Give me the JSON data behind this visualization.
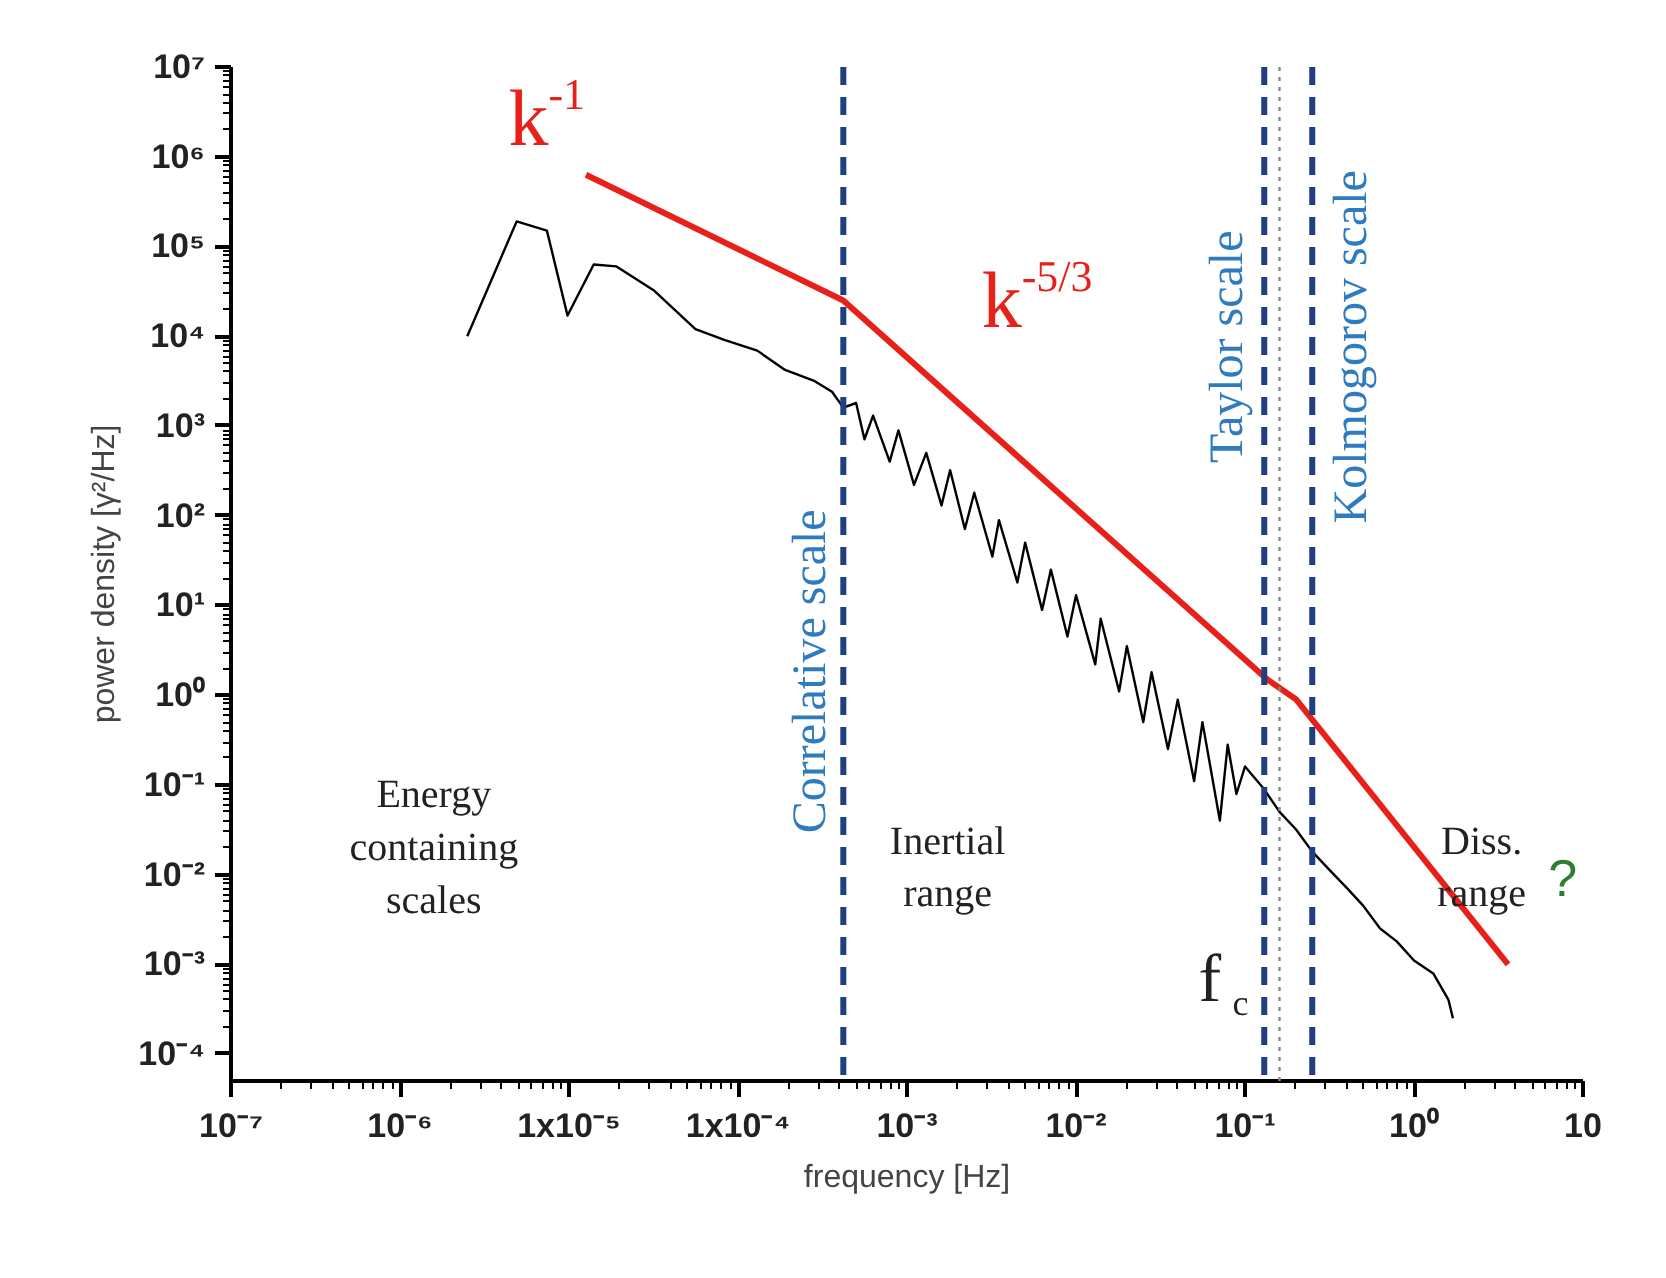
{
  "chart_data": {
    "type": "line",
    "xlabel": "frequency [Hz]",
    "ylabel": "power density [γ²/Hz]",
    "log": "xy",
    "grid": false,
    "marker": "none",
    "line_style": "solid",
    "xlim": [
      1e-07,
      10
    ],
    "ylim": [
      5e-05,
      10000000.0
    ],
    "xticks": [
      {
        "value": 1e-07,
        "label": "10⁻⁷"
      },
      {
        "value": 1e-06,
        "label": "10⁻⁶"
      },
      {
        "value": 1e-05,
        "label": "1x10⁻⁵"
      },
      {
        "value": 0.0001,
        "label": "1x10⁻⁴"
      },
      {
        "value": 0.001,
        "label": "10⁻³"
      },
      {
        "value": 0.01,
        "label": "10⁻²"
      },
      {
        "value": 0.1,
        "label": "10⁻¹"
      },
      {
        "value": 1,
        "label": "10⁰"
      },
      10
    ],
    "yticks": [
      {
        "value": 0.0001,
        "label": "10⁻⁴"
      },
      {
        "value": 0.001,
        "label": "10⁻³"
      },
      {
        "value": 0.01,
        "label": "10⁻²"
      },
      {
        "value": 0.1,
        "label": "10⁻¹"
      },
      {
        "value": 1,
        "label": "10⁰"
      },
      {
        "value": 10,
        "label": "10¹"
      },
      {
        "value": 100,
        "label": "10²"
      },
      {
        "value": 1000,
        "label": "10³"
      },
      {
        "value": 10000.0,
        "label": "10⁴"
      },
      {
        "value": 100000.0,
        "label": "10⁵"
      },
      {
        "value": 1000000.0,
        "label": "10⁶"
      },
      {
        "value": 10000000.0,
        "label": "10⁷"
      }
    ],
    "series": [
      {
        "color": "#000000",
        "x": [
          2.5e-06,
          4.9e-06,
          7.4e-06,
          9.8e-06,
          1.4e-05,
          1.9e-05,
          3.2e-05,
          5.6e-05,
          8.3e-05,
          0.00013,
          0.00019,
          0.00028,
          0.00036,
          0.00042,
          0.0005,
          0.00056,
          0.00063,
          0.00079,
          0.00089,
          0.0011,
          0.0013,
          0.0016,
          0.0018,
          0.0022,
          0.0025,
          0.0032,
          0.0035,
          0.0045,
          0.005,
          0.0063,
          0.0071,
          0.0089,
          0.01,
          0.013,
          0.014,
          0.018,
          0.02,
          0.025,
          0.028,
          0.035,
          0.04,
          0.05,
          0.056,
          0.071,
          0.079,
          0.089,
          0.1,
          0.13,
          0.16,
          0.2,
          0.25,
          0.32,
          0.4,
          0.5,
          0.63,
          0.79,
          1,
          1.3,
          1.6,
          1.7
        ],
        "values": [
          10000.0,
          190000.0,
          150000.0,
          17000.0,
          63000.0,
          60000.0,
          32000.0,
          12000.0,
          9100.0,
          6900.0,
          4200.0,
          3200.0,
          2400.0,
          1600.0,
          1800.0,
          710,
          1300.0,
          400,
          890,
          220,
          500,
          130,
          320,
          71,
          180,
          35,
          89,
          18,
          50,
          8.9,
          25,
          4.5,
          13,
          2.2,
          7.1,
          1.1,
          3.5,
          0.5,
          1.8,
          0.25,
          0.89,
          0.11,
          0.5,
          0.04,
          0.28,
          0.079,
          0.16,
          0.089,
          0.05,
          0.032,
          0.018,
          0.011,
          0.0071,
          0.0045,
          0.0025,
          0.0018,
          0.0011,
          0.00079,
          0.0004,
          0.00025
        ]
      },
      {
        "color": "#e8201a",
        "x": [
          1.26e-05,
          0.00042,
          0.135,
          0.2,
          3.6
        ],
        "values": [
          630000.0,
          25000.0,
          1.5,
          0.9,
          0.001
        ]
      }
    ],
    "ref_lines": [
      {
        "axis": "x",
        "value": 0.00042,
        "label": "Correlative  scale",
        "color": "#1f3f7f",
        "line_style": "dashed"
      },
      {
        "axis": "x",
        "value": 0.13,
        "label": "Taylor  scale",
        "color": "#1f3f7f",
        "line_style": "dashed"
      },
      {
        "axis": "x",
        "value": 0.25,
        "label": "Kolmogorov  scale",
        "color": "#1f3f7f",
        "line_style": "dashed"
      },
      {
        "axis": "x",
        "value": 0.16,
        "label": "f$_{c}$",
        "color": "#888888",
        "line_style": "dotted"
      }
    ],
    "annotations": [
      "k$^{-1}$",
      "k$^{-5/3}$",
      "Energy\ncontaining\nscales",
      "Inertial\nrange",
      "Diss.\nrange",
      "?"
    ]
  }
}
